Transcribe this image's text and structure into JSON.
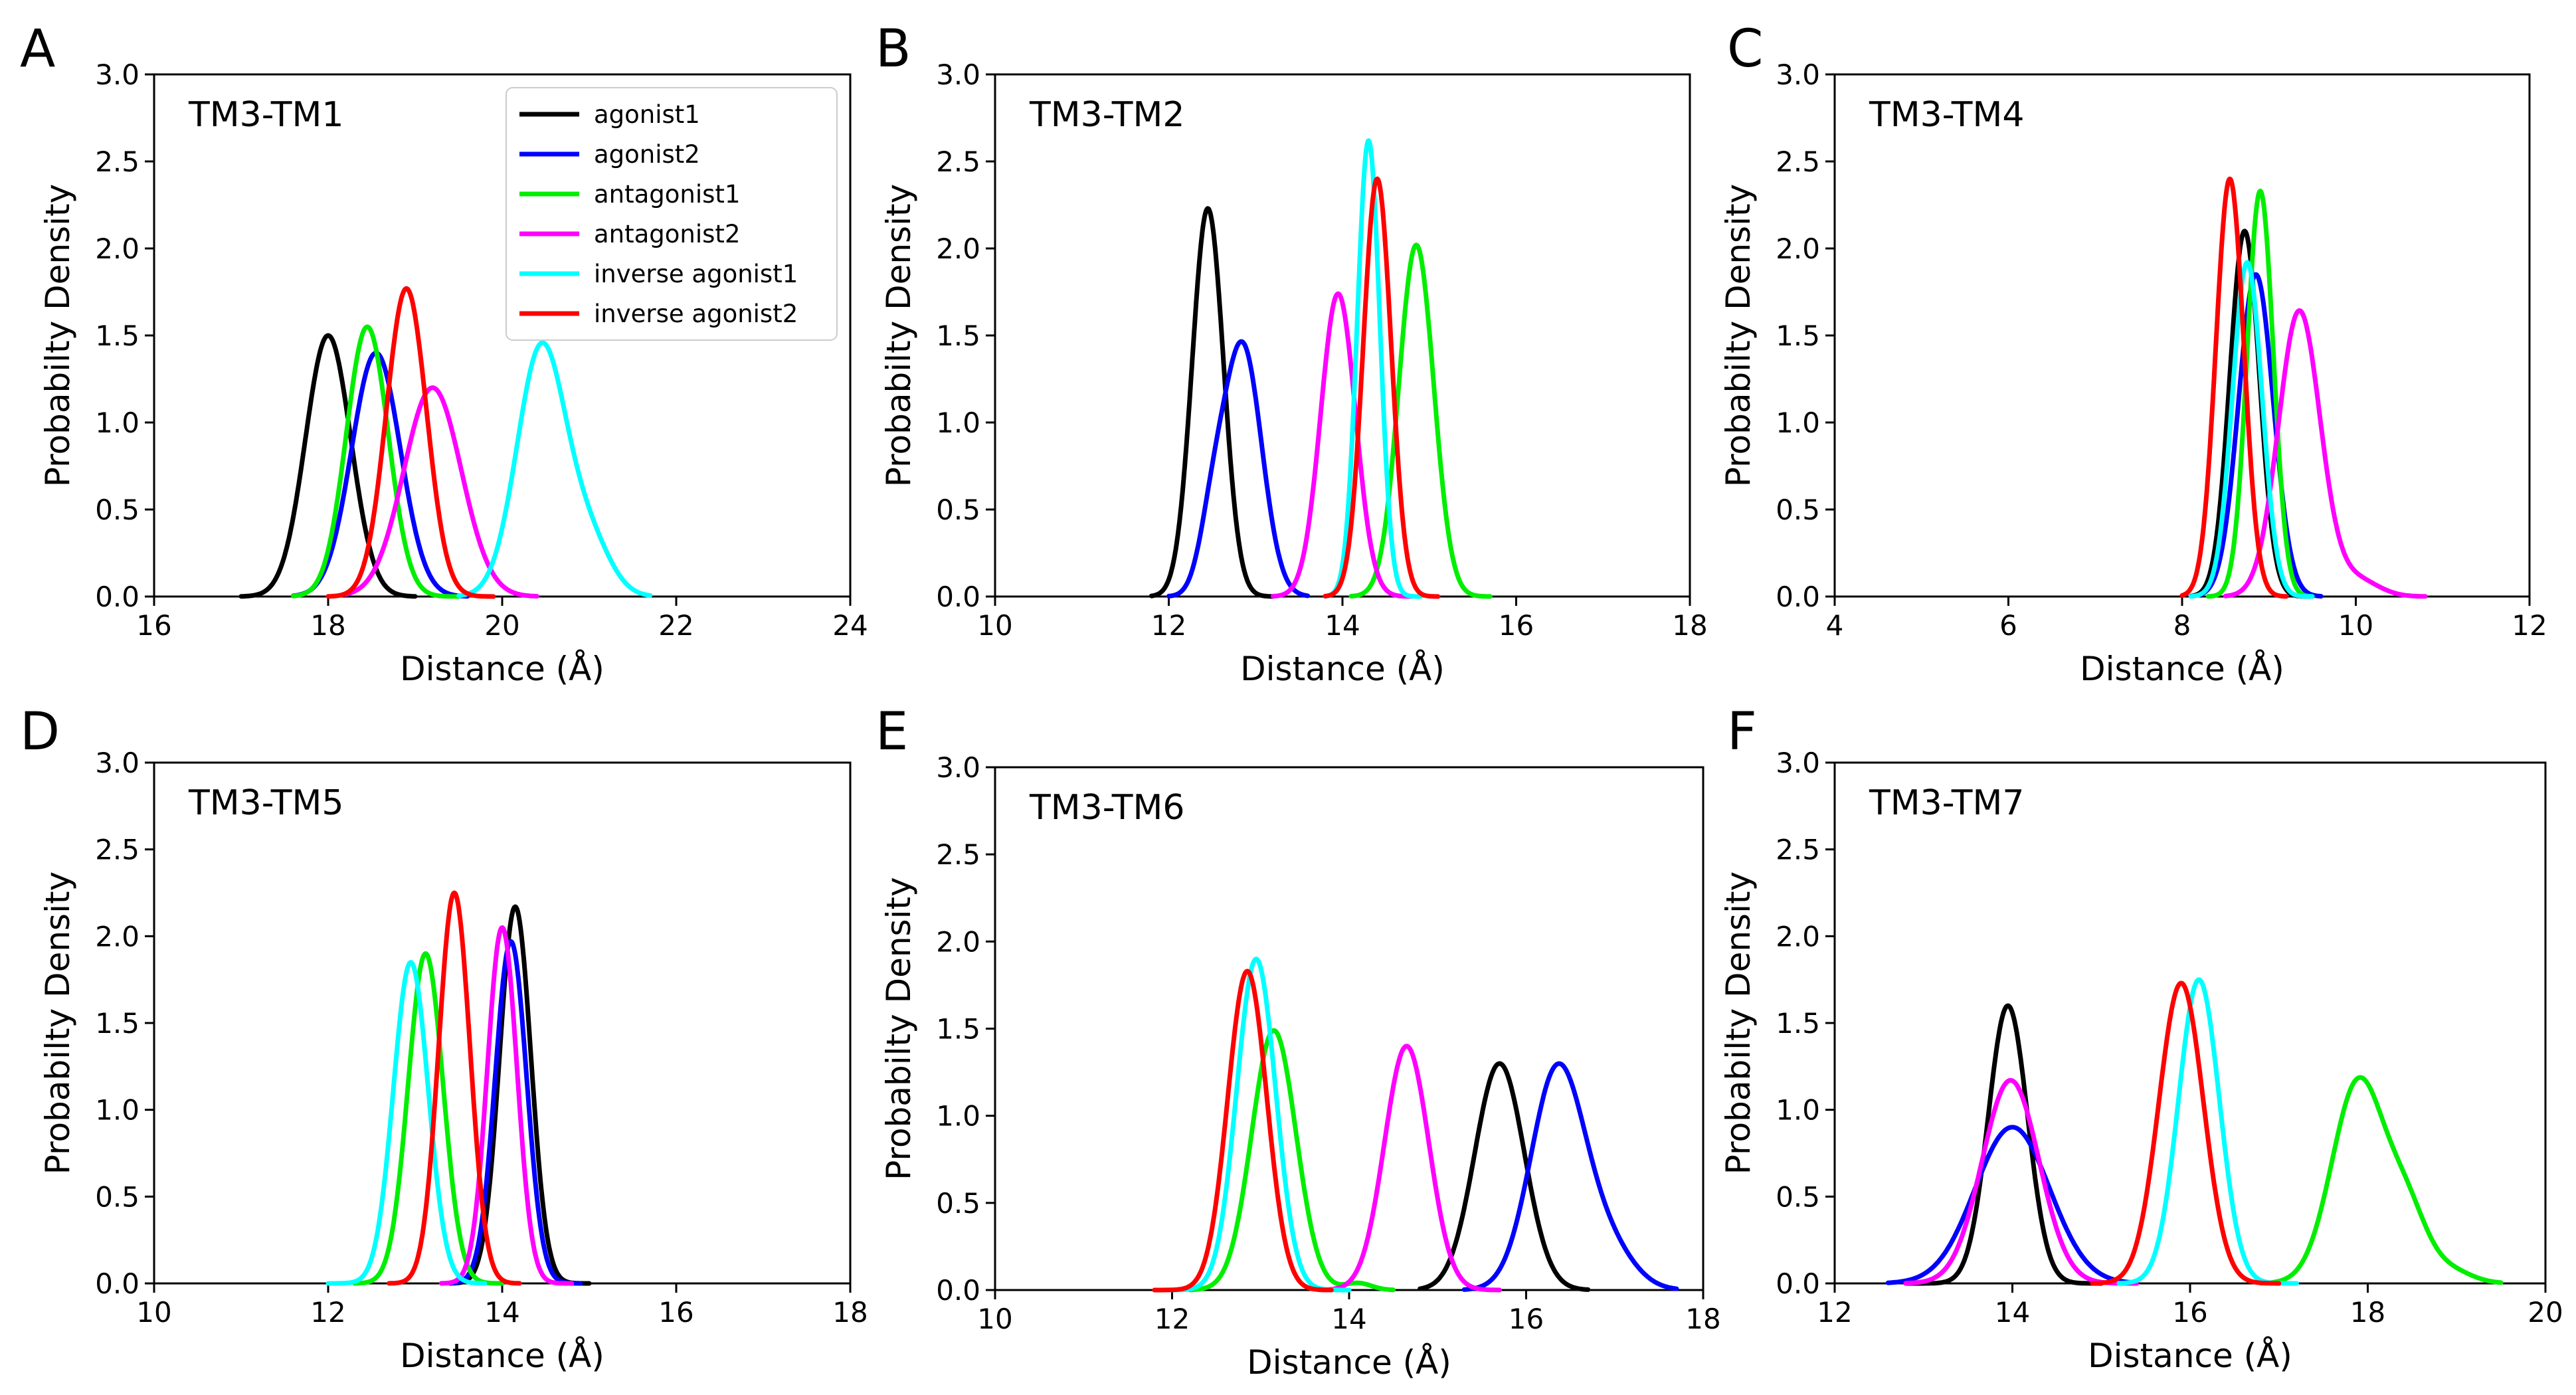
{
  "colors": {
    "agonist1": "#000000",
    "agonist2": "#0000ff",
    "antagonist1": "#00ee00",
    "antagonist2": "#ff00ff",
    "inverse_agonist1": "#00ffff",
    "inverse_agonist2": "#ff0000"
  },
  "legend": {
    "agonist1": "agonist1",
    "agonist2": "agonist2",
    "antagonist1": "antagonist1",
    "antagonist2": "antagonist2",
    "inverse_agonist1": "inverse agonist1",
    "inverse_agonist2": "inverse agonist2"
  },
  "chart_data": [
    {
      "type": "line",
      "panel": "A",
      "title": "TM3-TM1",
      "xlabel": "Distance (Å)",
      "ylabel": "Probabilty Density",
      "xlim": [
        16,
        24
      ],
      "ylim": [
        0,
        3.0
      ],
      "xticks": [
        "16",
        "18",
        "20",
        "22",
        "24"
      ],
      "yticks": [
        "0.0",
        "0.5",
        "1.0",
        "1.5",
        "2.0",
        "2.5",
        "3.0"
      ],
      "series": [
        {
          "key": "agonist1",
          "peaks": [
            [
              18.0,
              1.5,
              0.26
            ]
          ],
          "range": [
            17.0,
            19.0
          ]
        },
        {
          "key": "agonist2",
          "peaks": [
            [
              18.55,
              1.4,
              0.28
            ]
          ],
          "range": [
            17.6,
            19.6
          ]
        },
        {
          "key": "antagonist1",
          "peaks": [
            [
              18.45,
              1.55,
              0.24
            ]
          ],
          "range": [
            17.6,
            19.5
          ]
        },
        {
          "key": "antagonist2",
          "peaks": [
            [
              19.2,
              1.2,
              0.33
            ]
          ],
          "range": [
            18.2,
            20.4
          ]
        },
        {
          "key": "inverse_agonist1",
          "peaks": [
            [
              20.45,
              1.43,
              0.28
            ],
            [
              21.0,
              0.3,
              0.25
            ]
          ],
          "range": [
            19.5,
            21.7
          ]
        },
        {
          "key": "inverse_agonist2",
          "peaks": [
            [
              18.9,
              1.77,
              0.23
            ]
          ],
          "range": [
            18.0,
            19.9
          ]
        }
      ]
    },
    {
      "type": "line",
      "panel": "B",
      "title": "TM3-TM2",
      "xlabel": "Distance (Å)",
      "ylabel": "Probabilty Density",
      "xlim": [
        10,
        18
      ],
      "ylim": [
        0,
        3.0
      ],
      "xticks": [
        "10",
        "12",
        "14",
        "16",
        "18"
      ],
      "yticks": [
        "0.0",
        "0.5",
        "1.0",
        "1.5",
        "2.0",
        "2.5",
        "3.0"
      ],
      "series": [
        {
          "key": "agonist1",
          "peaks": [
            [
              12.45,
              2.23,
              0.18
            ]
          ],
          "range": [
            11.8,
            13.2
          ]
        },
        {
          "key": "agonist2",
          "peaks": [
            [
              12.85,
              1.44,
              0.22
            ],
            [
              12.5,
              0.35,
              0.15
            ]
          ],
          "range": [
            12.0,
            13.6
          ]
        },
        {
          "key": "antagonist1",
          "peaks": [
            [
              14.85,
              2.02,
              0.2
            ]
          ],
          "range": [
            14.1,
            15.7
          ]
        },
        {
          "key": "antagonist2",
          "peaks": [
            [
              13.95,
              1.74,
              0.2
            ]
          ],
          "range": [
            13.2,
            14.8
          ]
        },
        {
          "key": "inverse_agonist1",
          "peaks": [
            [
              14.3,
              2.62,
              0.13
            ]
          ],
          "range": [
            13.8,
            14.9
          ]
        },
        {
          "key": "inverse_agonist2",
          "peaks": [
            [
              14.4,
              2.4,
              0.16
            ]
          ],
          "range": [
            13.8,
            15.1
          ]
        }
      ]
    },
    {
      "type": "line",
      "panel": "C",
      "title": "TM3-TM4",
      "xlabel": "Distance (Å)",
      "ylabel": "Probabilty Density",
      "xlim": [
        4,
        12
      ],
      "ylim": [
        0,
        3.0
      ],
      "xticks": [
        "4",
        "6",
        "8",
        "10",
        "12"
      ],
      "yticks": [
        "0.0",
        "0.5",
        "1.0",
        "1.5",
        "2.0",
        "2.5",
        "3.0"
      ],
      "series": [
        {
          "key": "agonist1",
          "peaks": [
            [
              8.72,
              2.1,
              0.17
            ]
          ],
          "range": [
            8.1,
            9.5
          ]
        },
        {
          "key": "agonist2",
          "peaks": [
            [
              8.85,
              1.85,
              0.2
            ]
          ],
          "range": [
            8.2,
            9.6
          ]
        },
        {
          "key": "antagonist1",
          "peaks": [
            [
              8.9,
              2.33,
              0.15
            ]
          ],
          "range": [
            8.3,
            9.5
          ]
        },
        {
          "key": "antagonist2",
          "peaks": [
            [
              9.35,
              1.64,
              0.24
            ],
            [
              10.0,
              0.1,
              0.25
            ]
          ],
          "range": [
            8.5,
            10.8
          ]
        },
        {
          "key": "inverse_agonist1",
          "peaks": [
            [
              8.75,
              1.92,
              0.17
            ]
          ],
          "range": [
            8.1,
            9.5
          ]
        },
        {
          "key": "inverse_agonist2",
          "peaks": [
            [
              8.55,
              2.4,
              0.16
            ]
          ],
          "range": [
            8.0,
            9.2
          ]
        }
      ]
    },
    {
      "type": "line",
      "panel": "D",
      "title": "TM3-TM5",
      "xlabel": "Distance (Å)",
      "ylabel": "Probabilty Density",
      "xlim": [
        10,
        18
      ],
      "ylim": [
        0,
        3.0
      ],
      "xticks": [
        "10",
        "12",
        "14",
        "16",
        "18"
      ],
      "yticks": [
        "0.0",
        "0.5",
        "1.0",
        "1.5",
        "2.0",
        "2.5",
        "3.0"
      ],
      "series": [
        {
          "key": "agonist1",
          "peaks": [
            [
              14.15,
              2.17,
              0.18
            ]
          ],
          "range": [
            13.4,
            15.0
          ]
        },
        {
          "key": "agonist2",
          "peaks": [
            [
              14.1,
              1.97,
              0.18
            ]
          ],
          "range": [
            13.4,
            14.9
          ]
        },
        {
          "key": "antagonist1",
          "peaks": [
            [
              13.12,
              1.9,
              0.2
            ]
          ],
          "range": [
            12.3,
            14.0
          ]
        },
        {
          "key": "antagonist2",
          "peaks": [
            [
              14.0,
              2.05,
              0.17
            ]
          ],
          "range": [
            13.3,
            14.8
          ]
        },
        {
          "key": "inverse_agonist1",
          "peaks": [
            [
              12.95,
              1.85,
              0.2
            ]
          ],
          "range": [
            12.0,
            13.8
          ]
        },
        {
          "key": "inverse_agonist2",
          "peaks": [
            [
              13.45,
              2.25,
              0.18
            ]
          ],
          "range": [
            12.7,
            14.2
          ]
        }
      ]
    },
    {
      "type": "line",
      "panel": "E",
      "title": "TM3-TM6",
      "xlabel": "Distance (Å)",
      "ylabel": "Probabilty Density",
      "xlim": [
        10,
        18
      ],
      "ylim": [
        0,
        3.0
      ],
      "xticks": [
        "10",
        "12",
        "14",
        "16",
        "18"
      ],
      "yticks": [
        "0.0",
        "0.5",
        "1.0",
        "1.5",
        "2.0",
        "2.5",
        "3.0"
      ],
      "series": [
        {
          "key": "agonist1",
          "peaks": [
            [
              15.7,
              1.3,
              0.28
            ]
          ],
          "range": [
            14.8,
            16.7
          ]
        },
        {
          "key": "agonist2",
          "peaks": [
            [
              16.35,
              1.25,
              0.3
            ],
            [
              16.9,
              0.25,
              0.3
            ]
          ],
          "range": [
            15.3,
            17.7
          ]
        },
        {
          "key": "antagonist1",
          "peaks": [
            [
              13.15,
              1.49,
              0.25
            ],
            [
              14.1,
              0.04,
              0.15
            ]
          ],
          "range": [
            12.2,
            14.5
          ]
        },
        {
          "key": "antagonist2",
          "peaks": [
            [
              14.65,
              1.4,
              0.25
            ]
          ],
          "range": [
            13.7,
            15.7
          ]
        },
        {
          "key": "inverse_agonist1",
          "peaks": [
            [
              12.95,
              1.9,
              0.22
            ]
          ],
          "range": [
            12.0,
            14.0
          ]
        },
        {
          "key": "inverse_agonist2",
          "peaks": [
            [
              12.85,
              1.83,
              0.22
            ]
          ],
          "range": [
            11.8,
            13.8
          ]
        }
      ]
    },
    {
      "type": "line",
      "panel": "F",
      "title": "TM3-TM7",
      "xlabel": "Distance (Å)",
      "ylabel": "Probabilty Density",
      "xlim": [
        12,
        20
      ],
      "ylim": [
        0,
        3.0
      ],
      "xticks": [
        "12",
        "14",
        "16",
        "18",
        "20"
      ],
      "yticks": [
        "0.0",
        "0.5",
        "1.0",
        "1.5",
        "2.0",
        "2.5",
        "3.0"
      ],
      "series": [
        {
          "key": "agonist1",
          "peaks": [
            [
              13.95,
              1.6,
              0.22
            ]
          ],
          "range": [
            12.8,
            15.0
          ]
        },
        {
          "key": "agonist2",
          "peaks": [
            [
              14.0,
              0.9,
              0.42
            ]
          ],
          "range": [
            12.6,
            15.4
          ]
        },
        {
          "key": "antagonist1",
          "peaks": [
            [
              17.9,
              1.17,
              0.3
            ],
            [
              18.45,
              0.35,
              0.22
            ],
            [
              18.9,
              0.08,
              0.25
            ]
          ],
          "range": [
            16.8,
            19.5
          ]
        },
        {
          "key": "antagonist2",
          "peaks": [
            [
              13.98,
              1.17,
              0.32
            ]
          ],
          "range": [
            12.8,
            15.4
          ]
        },
        {
          "key": "inverse_agonist1",
          "peaks": [
            [
              16.1,
              1.75,
              0.23
            ]
          ],
          "range": [
            15.2,
            17.2
          ]
        },
        {
          "key": "inverse_agonist2",
          "peaks": [
            [
              15.9,
              1.73,
              0.25
            ]
          ],
          "range": [
            14.9,
            17.0
          ]
        }
      ]
    }
  ]
}
